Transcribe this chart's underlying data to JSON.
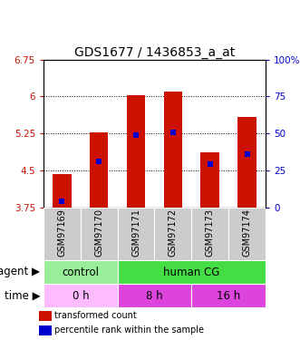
{
  "title": "GDS1677 / 1436853_a_at",
  "samples": [
    "GSM97169",
    "GSM97170",
    "GSM97171",
    "GSM97172",
    "GSM97173",
    "GSM97174"
  ],
  "bar_values": [
    4.42,
    5.28,
    6.02,
    6.1,
    4.87,
    5.58
  ],
  "bar_bottom": 3.75,
  "percentile_values": [
    3.88,
    4.68,
    5.22,
    5.28,
    4.62,
    4.83
  ],
  "bar_color": "#cc1100",
  "percentile_color": "#0000cc",
  "ylim_left": [
    3.75,
    6.75
  ],
  "yticks_left": [
    3.75,
    4.5,
    5.25,
    6.0,
    6.75
  ],
  "ytick_labels_left": [
    "3.75",
    "4.5",
    "5.25",
    "6",
    "6.75"
  ],
  "ylim_right": [
    0,
    100
  ],
  "yticks_right": [
    0,
    25,
    50,
    75,
    100
  ],
  "ytick_labels_right": [
    "0",
    "25",
    "50",
    "75",
    "100%"
  ],
  "grid_yticks": [
    4.5,
    5.25,
    6.0
  ],
  "agent_control_color": "#99ee99",
  "agent_humancg_color": "#44dd44",
  "time_0h_color": "#ffbbff",
  "time_8h_color": "#dd44dd",
  "time_16h_color": "#dd44dd",
  "xlabel_agent": "agent",
  "xlabel_time": "time",
  "legend1": "transformed count",
  "legend2": "percentile rank within the sample",
  "bar_width": 0.5,
  "sample_bg_color": "#cccccc",
  "title_fontsize": 10,
  "tick_fontsize": 7.5,
  "label_fontsize": 8.5,
  "sample_fontsize": 7,
  "legend_fontsize": 7
}
